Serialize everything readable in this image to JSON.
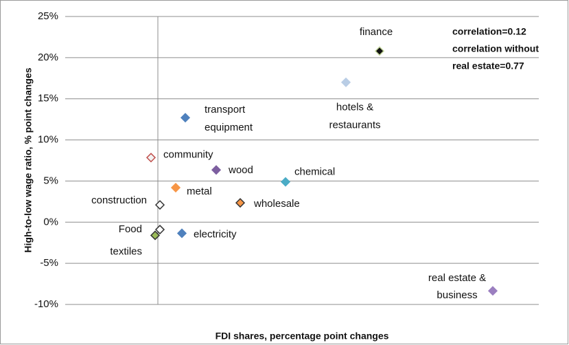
{
  "chart_data": {
    "type": "scatter",
    "xlabel": "FDI shares, percentage point changes",
    "ylabel": "High-to-low wage ratio, % point changes",
    "annotation": [
      "correlation=0.12",
      "correlation without",
      "real estate=0.77"
    ],
    "categories": [
      [
        "finance"
      ],
      [
        "hotels &",
        "restaurants"
      ],
      [
        "transport",
        "equipment"
      ],
      [
        "community"
      ],
      [
        "wood"
      ],
      [
        "chemical"
      ],
      [
        "metal"
      ],
      [
        "wholesale"
      ],
      [
        "construction"
      ],
      [
        "Food"
      ],
      [
        "electricity"
      ],
      [
        "textiles"
      ],
      [
        "real estate &",
        "business"
      ]
    ],
    "x": [
      3.23,
      2.74,
      0.4,
      -0.1,
      0.85,
      1.86,
      0.26,
      1.2,
      0.03,
      0.03,
      0.35,
      -0.04,
      4.88
    ],
    "values": [
      20.8,
      17.0,
      12.7,
      7.85,
      6.35,
      4.9,
      4.2,
      2.35,
      2.1,
      -0.9,
      -1.35,
      -1.6,
      -8.35
    ],
    "colors": [
      "#111111",
      "#b9cde5",
      "#4f81bd",
      "#f2f2f2",
      "#7d5fa0",
      "#4bacc6",
      "#f79646",
      "#f79646",
      "#ffffff",
      "#ffffff",
      "#4f81bd",
      "#9bbb59",
      "#9b7fc0"
    ],
    "edgecolors": [
      "#c3d69b",
      "#b9cde5",
      "#4f81bd",
      "#c0504d",
      "#7d5fa0",
      "#4bacc6",
      "#f79646",
      "#333333",
      "#333333",
      "#333333",
      "#4f81bd",
      "#333333",
      "#9b7fc0"
    ],
    "xlim": [
      -1.35,
      5.55
    ],
    "ylim": [
      -10,
      25
    ],
    "yticks": [
      {
        "value": -10,
        "label": "-10%"
      },
      {
        "value": -5,
        "label": "-5%"
      },
      {
        "value": 0,
        "label": "0%"
      },
      {
        "value": 5,
        "label": "5%"
      },
      {
        "value": 10,
        "label": "10%"
      },
      {
        "value": 15,
        "label": "15%"
      },
      {
        "value": 20,
        "label": "20%"
      },
      {
        "value": 25,
        "label": "25%"
      }
    ],
    "grid": true
  }
}
